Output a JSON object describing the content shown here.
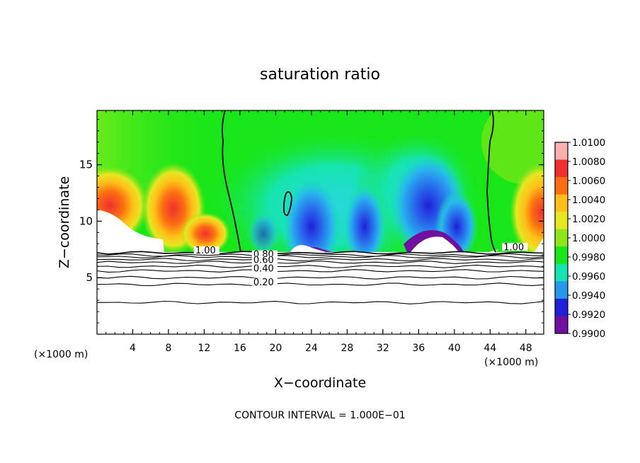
{
  "chart_data": {
    "type": "heatmap",
    "title": "saturation ratio",
    "xlabel": "X−coordinate",
    "ylabel": "Z−coordinate",
    "x_unit": "(×1000 m)",
    "x_unit_right": "(×1000 m)",
    "x_ticks": [
      4,
      8,
      12,
      16,
      20,
      24,
      28,
      32,
      36,
      40,
      44,
      48
    ],
    "y_ticks": [
      5,
      10,
      15
    ],
    "xlim": [
      0,
      50
    ],
    "ylim": [
      0,
      19.8
    ],
    "footer": "CONTOUR INTERVAL = 1.000E−01",
    "colorbar": {
      "levels": [
        "1.0100",
        "1.0080",
        "1.0060",
        "1.0040",
        "1.0020",
        "1.0000",
        "0.9980",
        "0.9960",
        "0.9940",
        "0.9920",
        "0.9900"
      ],
      "colors": [
        "#fbb0b0",
        "#f03030",
        "#fb6e12",
        "#fec018",
        "#e6e622",
        "#8ee618",
        "#18e618",
        "#16e4b0",
        "#2898ec",
        "#2020d8",
        "#7010a0"
      ]
    },
    "contour_labels": [
      {
        "text": "1.00",
        "x": 11,
        "z": 7.2
      },
      {
        "text": "0.80",
        "x": 17.5,
        "z": 6.85
      },
      {
        "text": "0.60",
        "x": 17.5,
        "z": 6.35
      },
      {
        "text": "0.40",
        "x": 17.5,
        "z": 5.6
      },
      {
        "text": "0.20",
        "x": 17.5,
        "z": 4.4
      },
      {
        "text": "1.00",
        "x": 45.5,
        "z": 7.5
      }
    ],
    "lower_contours_z": [
      7.2,
      7.0,
      6.85,
      6.6,
      6.35,
      6.0,
      5.6,
      5.0,
      4.4,
      2.8
    ]
  }
}
